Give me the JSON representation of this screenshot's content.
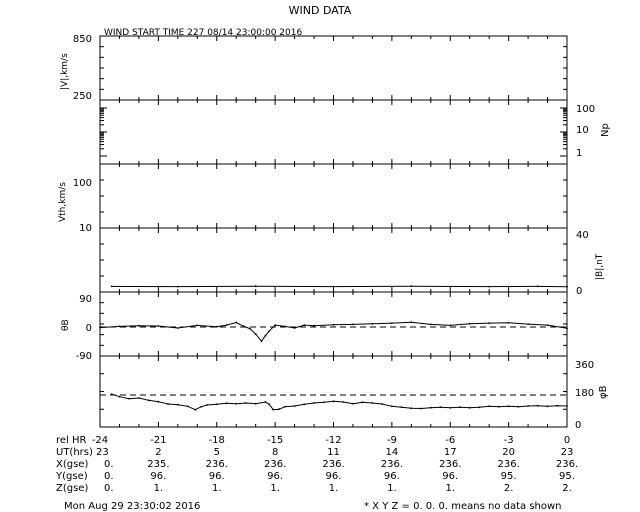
{
  "title": "WIND DATA",
  "subtitle": "WIND START TIME 227 08/14 23:00:00 2016",
  "footer": {
    "timestamp": "Mon Aug 29 23:30:02 2016",
    "note": "* X Y Z = 0. 0. 0. means no data shown"
  },
  "colors": {
    "ink": "#000000",
    "background": "#ffffff"
  },
  "chart_data": [
    {
      "type": "line",
      "panel": "speed",
      "ylabel": "|V|,km/s",
      "yticks": [
        "850",
        "250"
      ],
      "ylim": [
        250,
        850
      ],
      "series": []
    },
    {
      "type": "line",
      "panel": "density",
      "ylabel_right": "Np",
      "yticks_right": [
        "100",
        "10",
        "1"
      ],
      "scale": "log",
      "series": []
    },
    {
      "type": "line",
      "panel": "thermal-speed",
      "ylabel": "Vth,km/s",
      "yticks": [
        "100",
        "10"
      ],
      "scale": "log",
      "series": []
    },
    {
      "type": "line",
      "panel": "field-magnitude",
      "ylabel_right": "|B|,nT",
      "yticks_right": [
        "40",
        "0"
      ],
      "ylim": [
        0,
        40
      ],
      "x": [
        -23.4,
        -20,
        -16,
        -12,
        -8,
        -4,
        -1.5,
        0
      ],
      "values": [
        3.5,
        3.4,
        3.6,
        3.4,
        3.6,
        3.4,
        3.5,
        3.3
      ]
    },
    {
      "type": "line",
      "panel": "theta",
      "ylabel": "θB",
      "yticks": [
        "90",
        "0",
        "-90"
      ],
      "ylim": [
        -90,
        90
      ],
      "reference_line": 0,
      "x": [
        -24,
        -23,
        -22,
        -21,
        -20,
        -19,
        -18,
        -17.5,
        -17,
        -16.6,
        -16.3,
        -16,
        -15.7,
        -15.5,
        -15.3,
        -15,
        -14.5,
        -14,
        -13.5,
        -13,
        -12,
        -11,
        -10,
        -9,
        -8,
        -7,
        -6,
        -5,
        -4,
        -3,
        -2,
        -1,
        0
      ],
      "values": [
        -2,
        2,
        4,
        3,
        -3,
        5,
        1,
        6,
        14,
        2,
        -5,
        -22,
        -44,
        -27,
        -12,
        6,
        2,
        -3,
        6,
        4,
        7,
        8,
        10,
        12,
        15,
        8,
        5,
        10,
        12,
        13,
        9,
        6,
        -4
      ]
    },
    {
      "type": "line",
      "panel": "phi",
      "ylabel_right": "φB",
      "yticks_right": [
        "360",
        "180",
        "0"
      ],
      "ylim": [
        0,
        360
      ],
      "reference_line": 180,
      "x": [
        -23.4,
        -23,
        -22.5,
        -22,
        -21.5,
        -21,
        -20.5,
        -20,
        -19.5,
        -19.1,
        -18.8,
        -18.5,
        -18,
        -17.5,
        -17,
        -16.5,
        -16,
        -15.5,
        -15.3,
        -15.1,
        -14.8,
        -14.5,
        -14,
        -13.5,
        -13,
        -12.5,
        -12,
        -11.5,
        -11,
        -10.5,
        -10,
        -9.5,
        -9,
        -8.5,
        -8,
        -7.5,
        -7,
        -6.5,
        -6,
        -5.5,
        -5,
        -4.5,
        -4,
        -3.5,
        -3,
        -2.5,
        -2,
        -1.5,
        -1,
        -0.5,
        0
      ],
      "values": [
        185,
        170,
        158,
        162,
        148,
        140,
        126,
        122,
        112,
        92,
        110,
        120,
        124,
        130,
        128,
        132,
        128,
        138,
        124,
        92,
        95,
        110,
        114,
        124,
        132,
        136,
        142,
        138,
        128,
        136,
        132,
        126,
        112,
        107,
        100,
        99,
        104,
        107,
        103,
        107,
        104,
        106,
        112,
        110,
        112,
        110,
        114,
        116,
        112,
        116,
        114
      ]
    }
  ],
  "x_axis": {
    "ticks": [
      -24,
      -21,
      -18,
      -15,
      -12,
      -9,
      -6,
      -3,
      0
    ],
    "rows": [
      {
        "label": "rel HR",
        "values": [
          "-24",
          "-21",
          "-18",
          "-15",
          "-12",
          "-9",
          "-6",
          "-3",
          "0"
        ]
      },
      {
        "label": "UT(hrs)",
        "values": [
          "23",
          "2",
          "5",
          "8",
          "11",
          "14",
          "17",
          "20",
          "23"
        ]
      },
      {
        "label": "X(gse)",
        "values": [
          "0.",
          "235.",
          "236.",
          "236.",
          "236.",
          "236.",
          "236.",
          "236.",
          "236."
        ]
      },
      {
        "label": "Y(gse)",
        "values": [
          "0.",
          "96.",
          "96.",
          "96.",
          "96.",
          "96.",
          "96.",
          "95.",
          "95."
        ]
      },
      {
        "label": "Z(gse)",
        "values": [
          "0.",
          "1.",
          "1.",
          "1.",
          "1.",
          "1.",
          "1.",
          "2.",
          "2."
        ]
      }
    ]
  }
}
